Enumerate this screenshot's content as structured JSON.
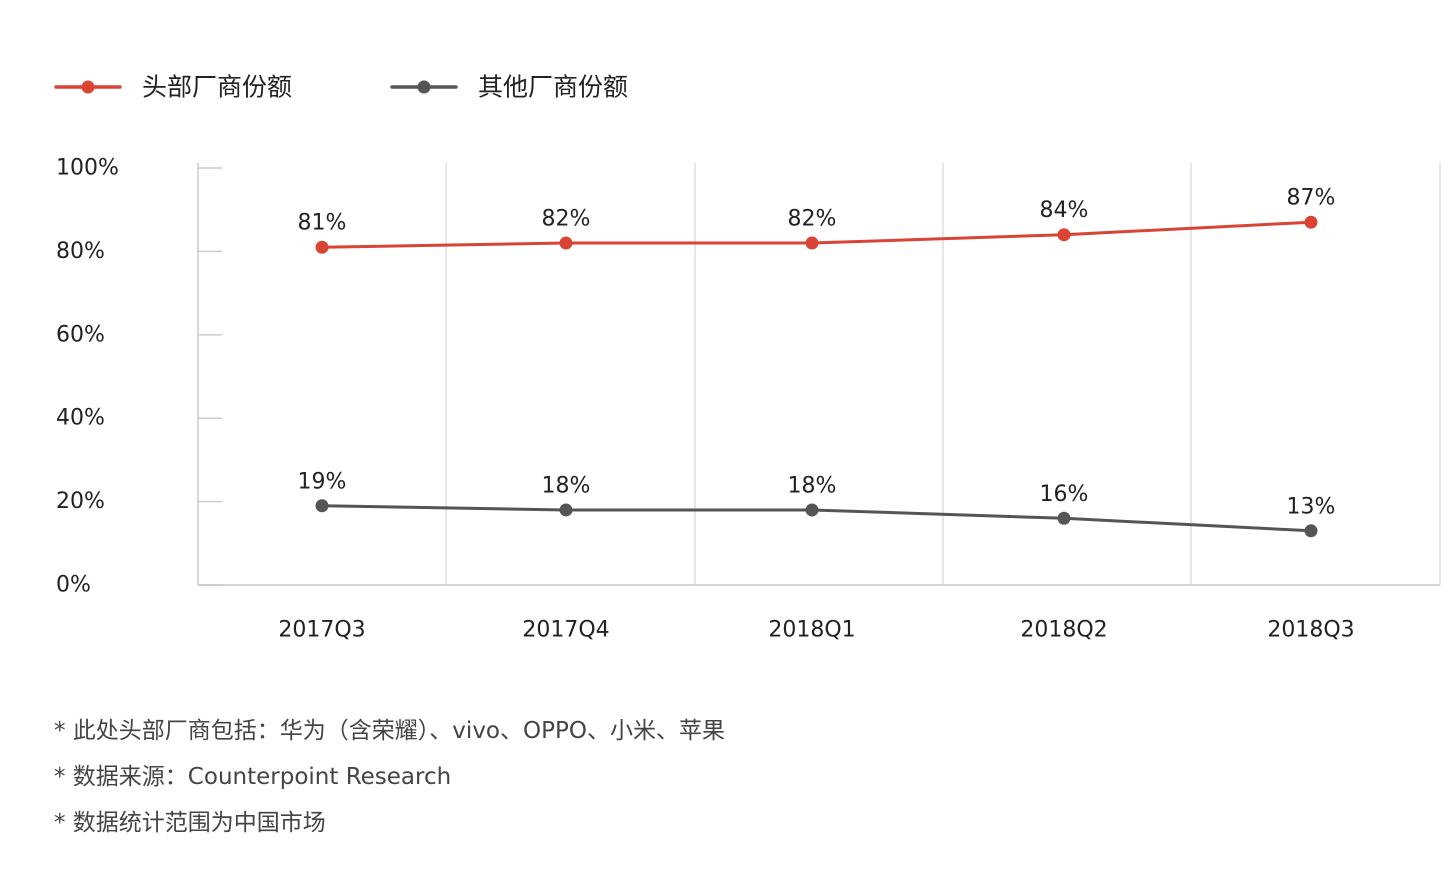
{
  "chart_data": {
    "type": "line",
    "categories": [
      "2017Q3",
      "2017Q4",
      "2018Q1",
      "2018Q2",
      "2018Q3"
    ],
    "series": [
      {
        "name": "头部厂商份额",
        "color": "#d94434",
        "values": [
          81,
          82,
          82,
          84,
          87
        ],
        "labels": [
          "81%",
          "82%",
          "82%",
          "84%",
          "87%"
        ]
      },
      {
        "name": "其他厂商份额",
        "color": "#555555",
        "values": [
          19,
          18,
          18,
          16,
          13
        ],
        "labels": [
          "19%",
          "18%",
          "18%",
          "16%",
          "13%"
        ]
      }
    ],
    "ylim": [
      0,
      100
    ],
    "yticks": [
      "0%",
      "20%",
      "40%",
      "60%",
      "80%",
      "100%"
    ],
    "ytick_values": [
      0,
      20,
      40,
      60,
      80,
      100
    ],
    "grid": "vertical",
    "legend_position": "top-left",
    "title": "",
    "xlabel": "",
    "ylabel": ""
  },
  "notes": [
    "* 此处头部厂商包括：华为（含荣耀）、vivo、OPPO、小米、苹果",
    "* 数据来源：Counterpoint Research",
    "* 数据统计范围为中国市场"
  ]
}
